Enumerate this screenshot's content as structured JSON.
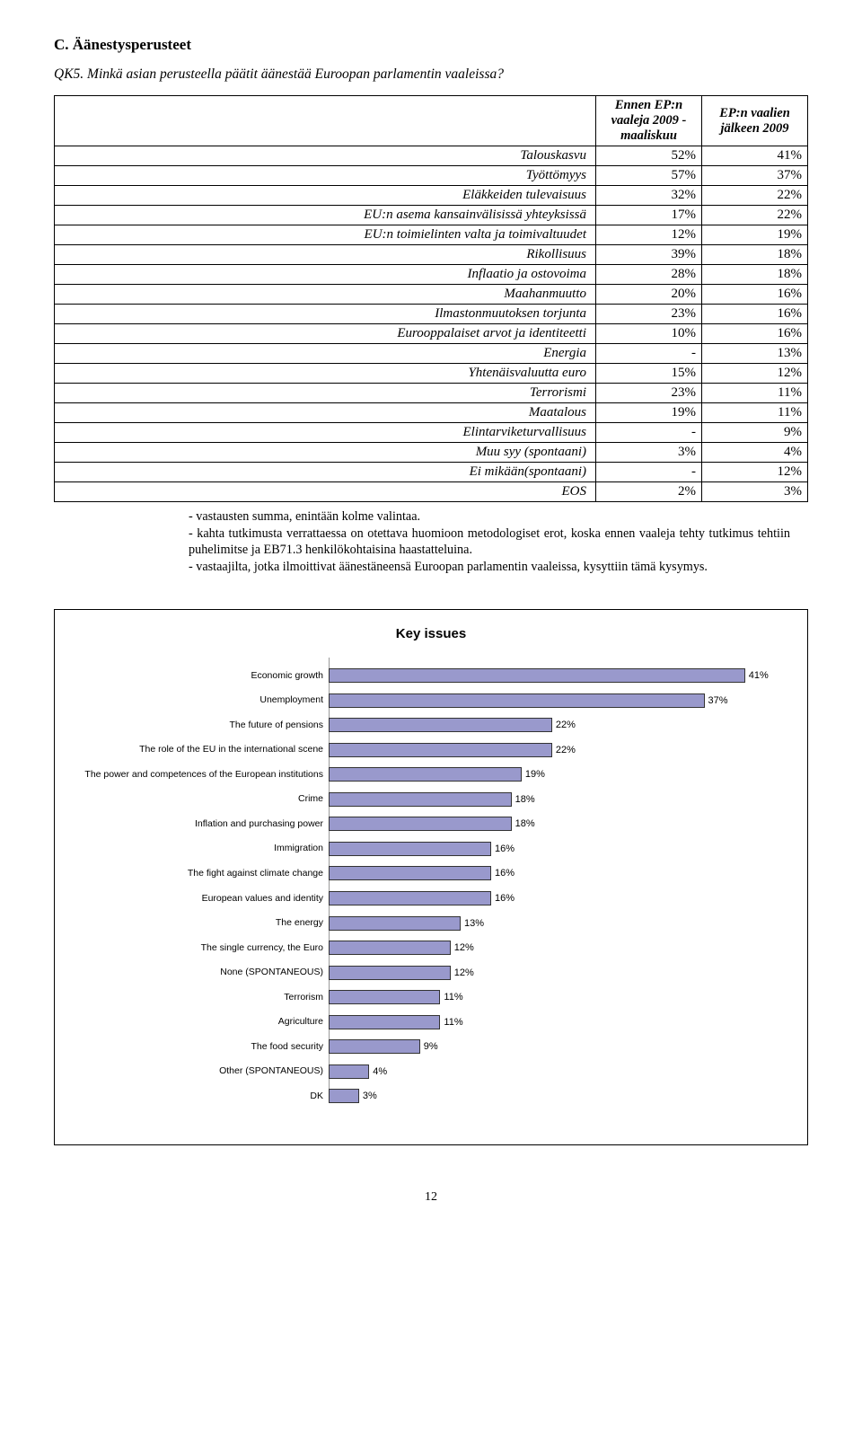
{
  "section_title": "C. Äänestysperusteet",
  "question": "QK5. Minkä asian perusteella päätit äänestää Euroopan parlamentin vaaleissa?",
  "table": {
    "head_col1": "Ennen EP:n vaaleja 2009 - maaliskuu",
    "head_col2": "EP:n vaalien jälkeen 2009",
    "rows": [
      {
        "label": "Talouskasvu",
        "v1": "52%",
        "v2": "41%"
      },
      {
        "label": "Työttömyys",
        "v1": "57%",
        "v2": "37%"
      },
      {
        "label": "Eläkkeiden tulevaisuus",
        "v1": "32%",
        "v2": "22%"
      },
      {
        "label": "EU:n asema kansainvälisissä yhteyksissä",
        "v1": "17%",
        "v2": "22%"
      },
      {
        "label": "EU:n toimielinten valta ja toimivaltuudet",
        "v1": "12%",
        "v2": "19%"
      },
      {
        "label": "Rikollisuus",
        "v1": "39%",
        "v2": "18%"
      },
      {
        "label": "Inflaatio ja ostovoima",
        "v1": "28%",
        "v2": "18%"
      },
      {
        "label": "Maahanmuutto",
        "v1": "20%",
        "v2": "16%"
      },
      {
        "label": "Ilmastonmuutoksen torjunta",
        "v1": "23%",
        "v2": "16%"
      },
      {
        "label": "Eurooppalaiset arvot ja identiteetti",
        "v1": "10%",
        "v2": "16%"
      },
      {
        "label": "Energia",
        "v1": "-",
        "v2": "13%"
      },
      {
        "label": "Yhtenäisvaluutta euro",
        "v1": "15%",
        "v2": "12%"
      },
      {
        "label": "Terrorismi",
        "v1": "23%",
        "v2": "11%"
      },
      {
        "label": "Maatalous",
        "v1": "19%",
        "v2": "11%"
      },
      {
        "label": "Elintarviketurvallisuus",
        "v1": "-",
        "v2": "9%"
      },
      {
        "label": "Muu syy (spontaani)",
        "v1": "3%",
        "v2": "4%"
      },
      {
        "label": "Ei mikään(spontaani)",
        "v1": "-",
        "v2": "12%"
      },
      {
        "label": "EOS",
        "v1": "2%",
        "v2": "3%"
      }
    ]
  },
  "footnotes": [
    "- vastausten summa, enintään kolme valintaa.",
    "- kahta tutkimusta verrattaessa on otettava huomioon metodologiset erot, koska ennen vaaleja tehty tutkimus tehtiin puhelimitse ja EB71.3 henkilökohtaisina haastatteluina.",
    "- vastaajilta, jotka ilmoittivat äänestäneensä Euroopan parlamentin vaaleissa, kysyttiin tämä kysymys."
  ],
  "chart": {
    "type": "bar-horizontal",
    "title": "Key issues",
    "bar_color": "#9999cc",
    "bar_border_color": "#333333",
    "grid_color": "#cfcfcf",
    "background_color": "#ffffff",
    "label_fontsize": 10.5,
    "value_fontsize": 11,
    "xmax": 45,
    "bars": [
      {
        "label": "Economic growth",
        "value": 41,
        "text": "41%"
      },
      {
        "label": "Unemployment",
        "value": 37,
        "text": "37%"
      },
      {
        "label": "The future of pensions",
        "value": 22,
        "text": "22%"
      },
      {
        "label": "The role of the EU in the international scene",
        "value": 22,
        "text": "22%"
      },
      {
        "label": "The power and competences of the European institutions",
        "value": 19,
        "text": "19%"
      },
      {
        "label": "Crime",
        "value": 18,
        "text": "18%"
      },
      {
        "label": "Inflation and purchasing power",
        "value": 18,
        "text": "18%"
      },
      {
        "label": "Immigration",
        "value": 16,
        "text": "16%"
      },
      {
        "label": "The fight against climate change",
        "value": 16,
        "text": "16%"
      },
      {
        "label": "European values and identity",
        "value": 16,
        "text": "16%"
      },
      {
        "label": "The energy",
        "value": 13,
        "text": "13%"
      },
      {
        "label": "The single currency, the Euro",
        "value": 12,
        "text": "12%"
      },
      {
        "label": "None (SPONTANEOUS)",
        "value": 12,
        "text": "12%"
      },
      {
        "label": "Terrorism",
        "value": 11,
        "text": "11%"
      },
      {
        "label": "Agriculture",
        "value": 11,
        "text": "11%"
      },
      {
        "label": "The food security",
        "value": 9,
        "text": "9%"
      },
      {
        "label": "Other (SPONTANEOUS)",
        "value": 4,
        "text": "4%"
      },
      {
        "label": "DK",
        "value": 3,
        "text": "3%"
      }
    ]
  },
  "page_number": "12"
}
